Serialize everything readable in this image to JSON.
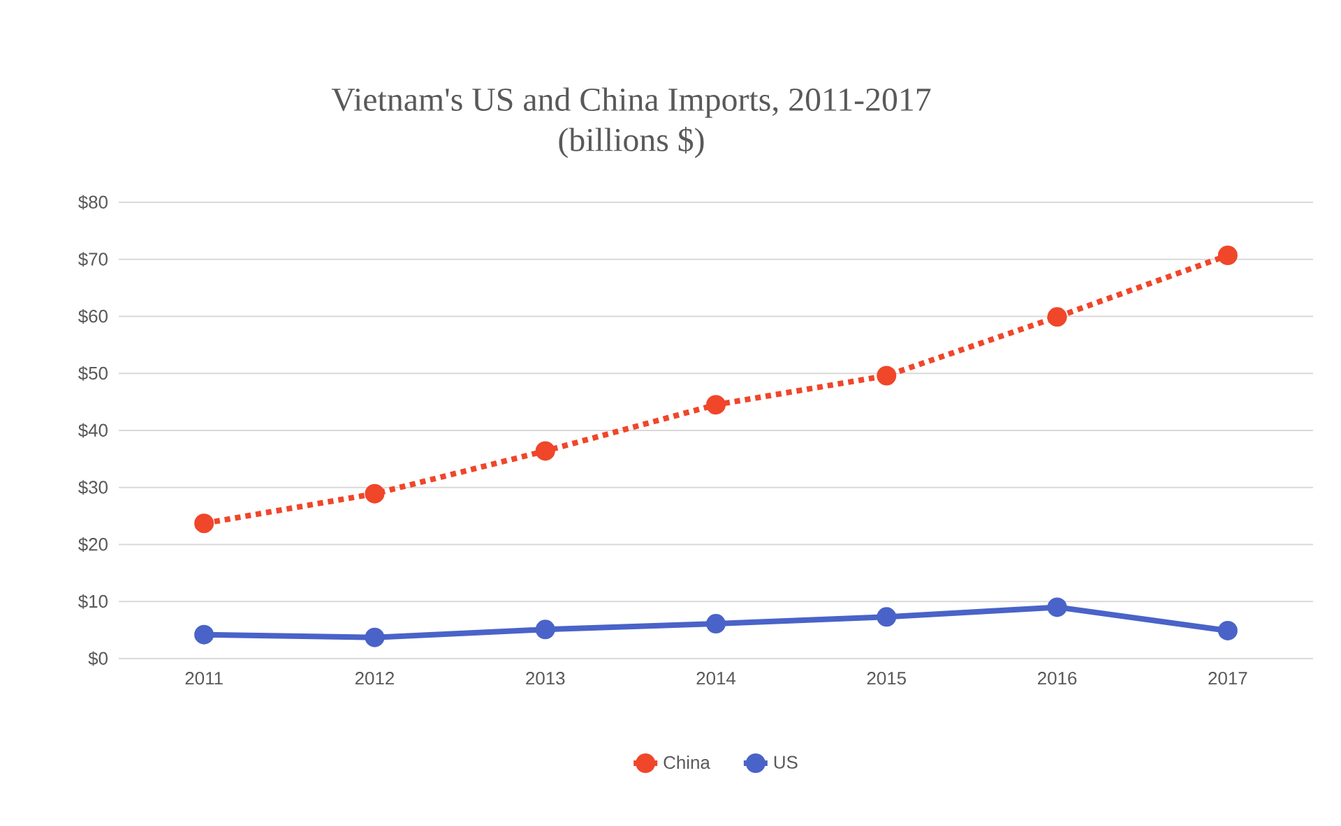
{
  "chart_data": {
    "type": "line",
    "title": "Vietnam's US and China Imports, 2011-2017",
    "subtitle": "(billions $)",
    "categories": [
      "2011",
      "2012",
      "2013",
      "2014",
      "2015",
      "2016",
      "2017"
    ],
    "series": [
      {
        "name": "China",
        "color": "#f0462a",
        "line_style": "dotted",
        "values": [
          23.7,
          28.9,
          36.4,
          44.5,
          49.6,
          59.9,
          70.7
        ]
      },
      {
        "name": "US",
        "color": "#4a63c8",
        "line_style": "solid",
        "values": [
          4.2,
          3.7,
          5.1,
          6.1,
          7.3,
          9.0,
          4.9
        ]
      }
    ],
    "ylim": [
      0,
      80
    ],
    "yticks": [
      {
        "value": 0,
        "label": "$0"
      },
      {
        "value": 10,
        "label": "$10"
      },
      {
        "value": 20,
        "label": "$20"
      },
      {
        "value": 30,
        "label": "$30"
      },
      {
        "value": 40,
        "label": "$40"
      },
      {
        "value": 50,
        "label": "$50"
      },
      {
        "value": 60,
        "label": "$60"
      },
      {
        "value": 70,
        "label": "$70"
      },
      {
        "value": 80,
        "label": "$80"
      }
    ],
    "grid": "y",
    "legend": "bottom",
    "marker": "circle"
  }
}
